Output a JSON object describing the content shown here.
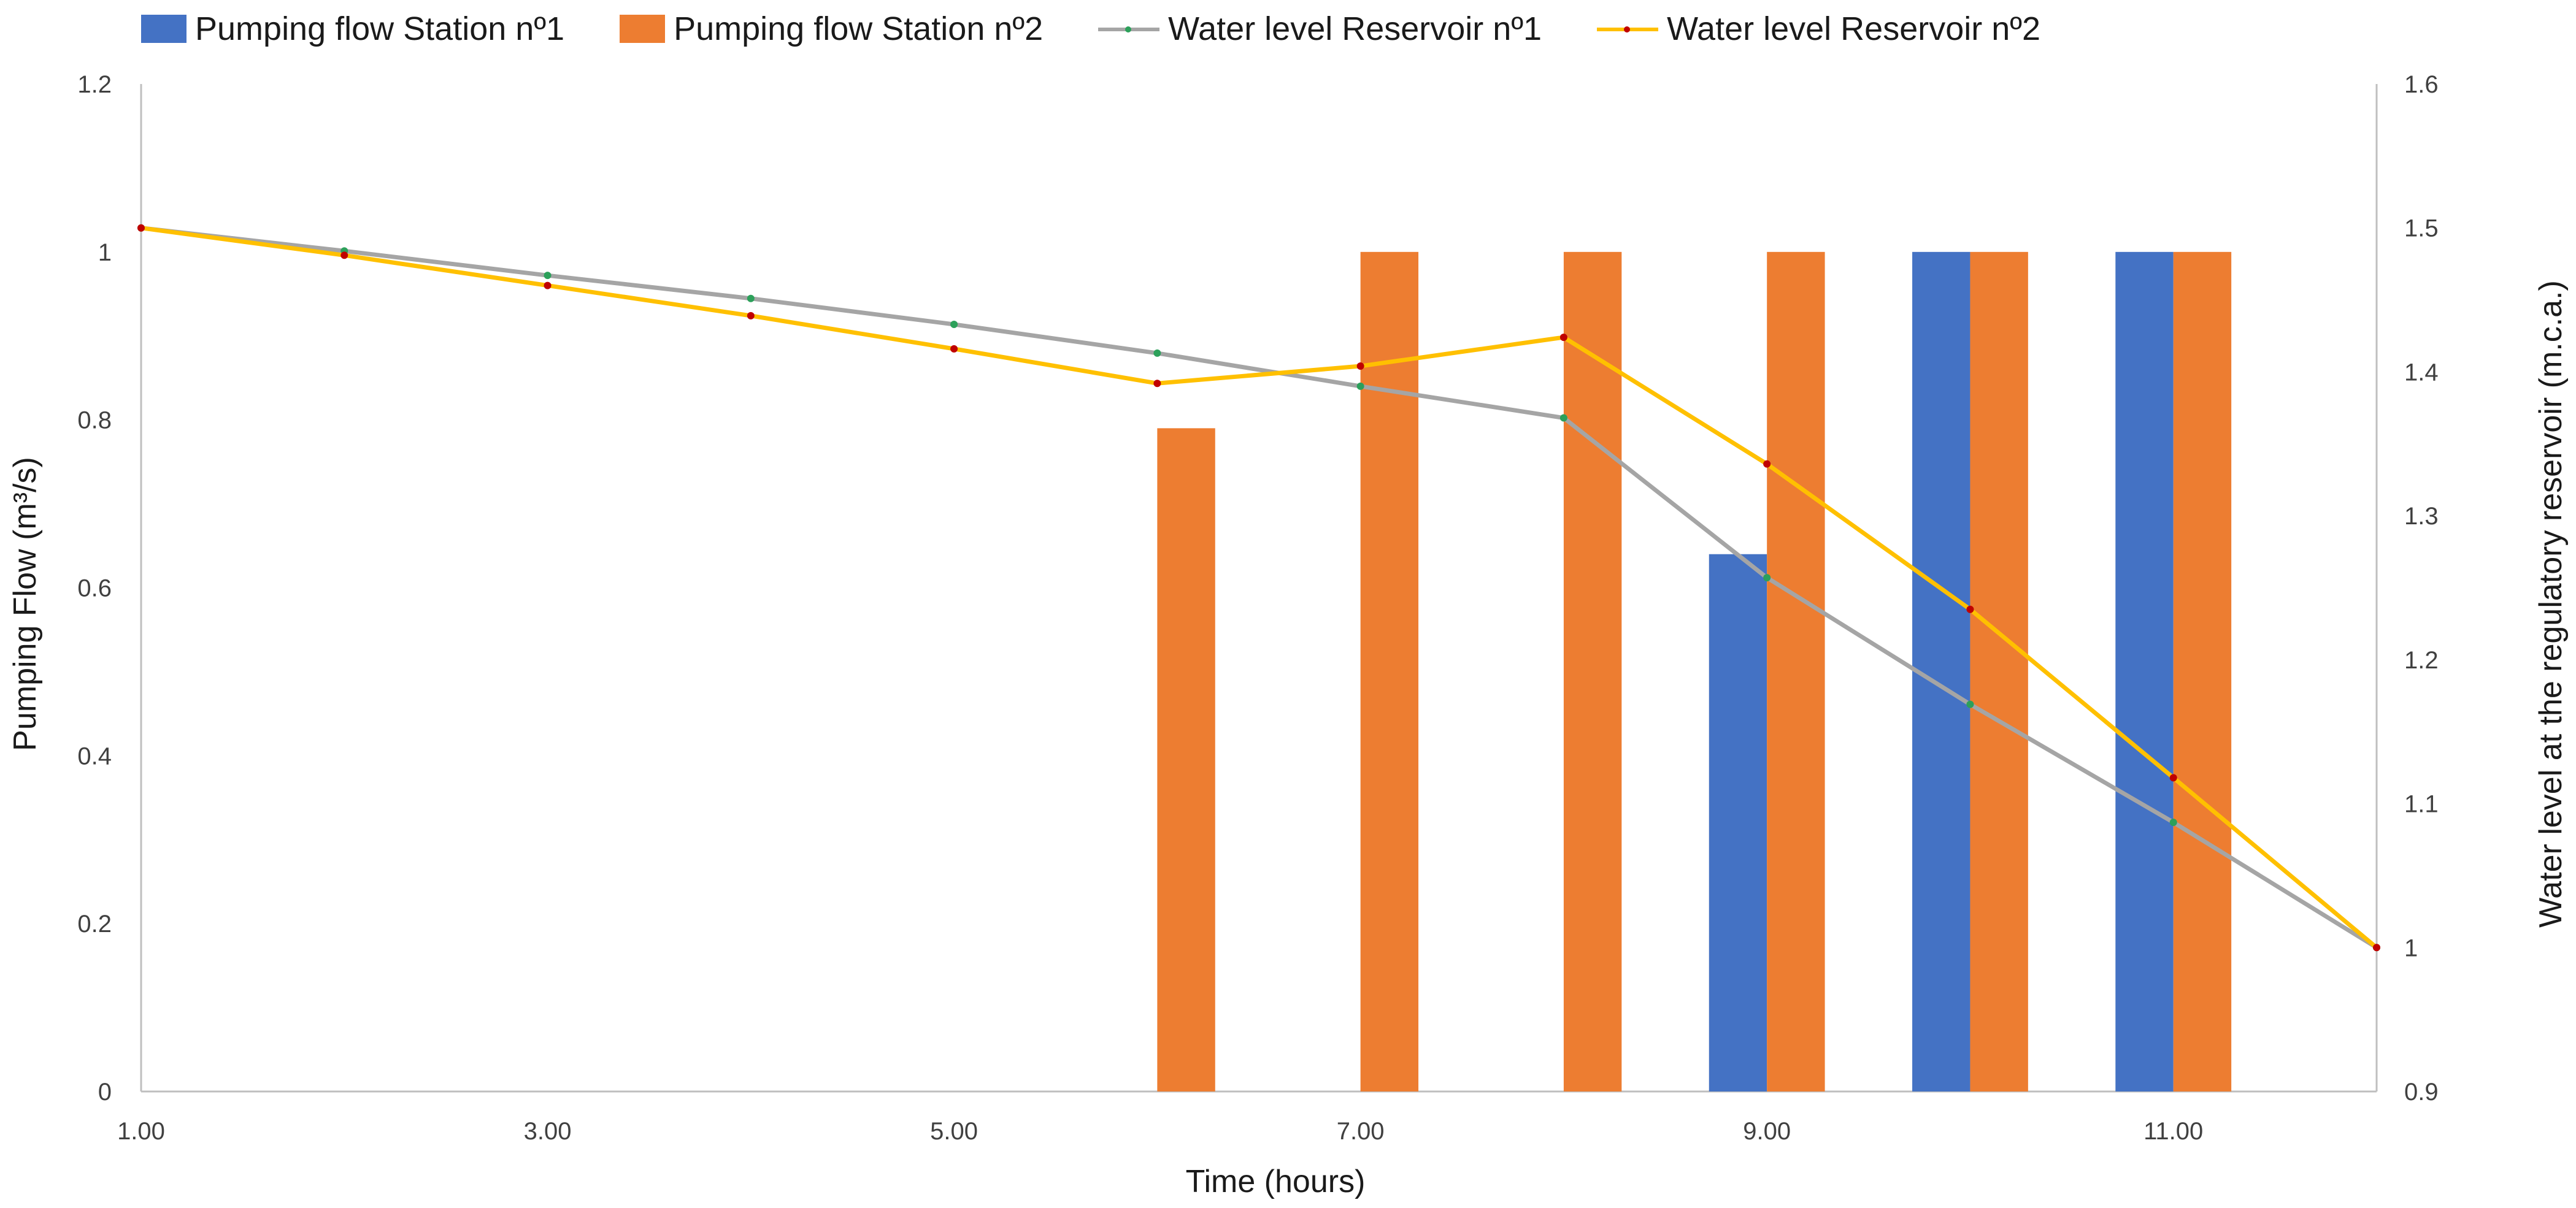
{
  "chart_data": {
    "type": "bar+line",
    "title": "",
    "xlabel": "Time (hours)",
    "ylabel": "Pumping Flow (m³/s)",
    "y2label": "Water level at the regulatory reservoir (m.c.a.)",
    "x": [
      1,
      2,
      3,
      4,
      5,
      6,
      7,
      8,
      9,
      10,
      11,
      12
    ],
    "xlim": [
      1,
      12
    ],
    "x_ticks": [
      "1.00",
      "3.00",
      "5.00",
      "7.00",
      "9.00",
      "11.00"
    ],
    "ylim": [
      0,
      1.2
    ],
    "y_ticks": [
      "0",
      "0.2",
      "0.4",
      "0.6",
      "0.8",
      "1",
      "1.2"
    ],
    "y2lim": [
      0.9,
      1.6
    ],
    "y2_ticks": [
      "0.9",
      "1",
      "1.1",
      "1.2",
      "1.3",
      "1.4",
      "1.5",
      "1.6"
    ],
    "bar_series": [
      {
        "name": "Pumping flow Station nº1",
        "color": "#4472c4",
        "values": [
          0,
          0,
          0,
          0,
          0,
          0,
          0,
          0,
          0.64,
          1.0,
          1.0,
          0
        ]
      },
      {
        "name": "Pumping flow Station nº2",
        "color": "#ed7d31",
        "values": [
          0,
          0,
          0,
          0,
          0,
          0.79,
          1.0,
          1.0,
          1.0,
          1.0,
          1.0,
          0
        ]
      }
    ],
    "line_series": [
      {
        "name": "Water level Reservoir nº1",
        "color": "#a5a5a5",
        "marker_color": "#2ca05a",
        "axis": "right",
        "values": [
          1.5,
          1.484,
          1.467,
          1.451,
          1.433,
          1.413,
          1.39,
          1.368,
          1.257,
          1.169,
          1.087,
          1.0
        ]
      },
      {
        "name": "Water level Reservoir nº2",
        "color": "#ffc000",
        "marker_color": "#c00000",
        "axis": "right",
        "values": [
          1.5,
          1.481,
          1.46,
          1.439,
          1.416,
          1.392,
          1.404,
          1.424,
          1.336,
          1.235,
          1.118,
          1.0
        ]
      }
    ],
    "legend": "top"
  }
}
